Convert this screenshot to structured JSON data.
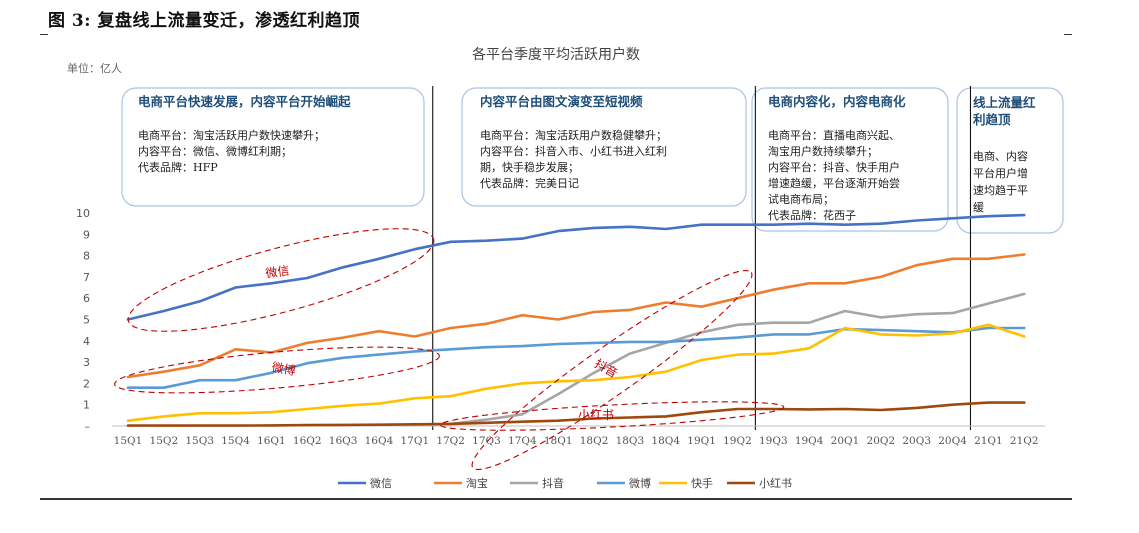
{
  "figure_title": "图 3:  复盘线上流量变迁，渗透红利趋顶",
  "chart_data": {
    "type": "line",
    "title": "各平台季度平均活跃用户数",
    "unit": "单位：亿人",
    "categories": [
      "15Q1",
      "15Q2",
      "15Q3",
      "15Q4",
      "16Q1",
      "16Q2",
      "16Q3",
      "16Q4",
      "17Q1",
      "17Q2",
      "17Q3",
      "17Q4",
      "18Q1",
      "18Q2",
      "18Q3",
      "18Q4",
      "19Q1",
      "19Q2",
      "19Q3",
      "19Q4",
      "20Q1",
      "20Q2",
      "20Q3",
      "20Q4",
      "21Q1",
      "21Q2"
    ],
    "ylim": [
      0,
      10
    ],
    "yticks": [
      "–",
      "1",
      "2",
      "3",
      "4",
      "5",
      "6",
      "7",
      "8",
      "9",
      "10"
    ],
    "grid": false,
    "legend_position": "bottom",
    "series": [
      {
        "name": "微信",
        "color": "#4472C4",
        "values": [
          5.0,
          5.4,
          5.85,
          6.5,
          6.7,
          6.95,
          7.45,
          7.85,
          8.3,
          8.65,
          8.7,
          8.8,
          9.15,
          9.3,
          9.35,
          9.25,
          9.45,
          9.45,
          9.45,
          9.5,
          9.45,
          9.5,
          9.65,
          9.75,
          9.85,
          9.9
        ]
      },
      {
        "name": "淘宝",
        "color": "#ED7D31",
        "values": [
          2.3,
          2.55,
          2.85,
          3.6,
          3.45,
          3.9,
          4.15,
          4.45,
          4.2,
          4.6,
          4.8,
          5.2,
          5.0,
          5.35,
          5.45,
          5.8,
          5.6,
          6.0,
          6.4,
          6.7,
          6.7,
          7.0,
          7.55,
          7.85,
          7.85,
          8.05
        ]
      },
      {
        "name": "抖音",
        "color": "#A5A5A5",
        "values": [
          null,
          null,
          null,
          null,
          null,
          null,
          null,
          null,
          null,
          0.1,
          0.3,
          0.55,
          1.5,
          2.5,
          3.4,
          3.9,
          4.4,
          4.75,
          4.85,
          4.85,
          5.4,
          5.1,
          5.25,
          5.3,
          5.75,
          6.2
        ]
      },
      {
        "name": "微博",
        "color": "#5B9BD5",
        "values": [
          1.8,
          1.8,
          2.15,
          2.15,
          2.5,
          2.95,
          3.2,
          3.35,
          3.5,
          3.6,
          3.7,
          3.75,
          3.85,
          3.9,
          3.95,
          3.95,
          4.05,
          4.15,
          4.3,
          4.3,
          4.55,
          4.5,
          4.45,
          4.4,
          4.6,
          4.6
        ]
      },
      {
        "name": "快手",
        "color": "#FFC000",
        "values": [
          0.25,
          0.45,
          0.6,
          0.6,
          0.65,
          0.8,
          0.95,
          1.05,
          1.3,
          1.4,
          1.75,
          2.0,
          2.1,
          2.15,
          2.3,
          2.55,
          3.1,
          3.35,
          3.4,
          3.65,
          4.6,
          4.3,
          4.25,
          4.35,
          4.75,
          4.2
        ]
      },
      {
        "name": "小红书",
        "color": "#9E480E",
        "values": [
          0.02,
          0.02,
          0.02,
          0.02,
          0.03,
          0.04,
          0.05,
          0.06,
          0.08,
          0.1,
          0.15,
          0.2,
          0.25,
          0.35,
          0.4,
          0.45,
          0.65,
          0.8,
          0.8,
          0.78,
          0.8,
          0.75,
          0.85,
          1.0,
          1.1,
          1.1
        ]
      }
    ],
    "phase_dividers_after": [
      "17Q1",
      "19Q2",
      "20Q4"
    ],
    "phases": [
      {
        "heading": "电商平台快速发展，内容平台开始崛起",
        "lines": [
          "电商平台：淘宝活跃用户数快速攀升；",
          "内容平台：微信、微博红利期；",
          "代表品牌：HFP"
        ]
      },
      {
        "heading": "内容平台由图文演变至短视频",
        "lines": [
          "电商平台：淘宝活跃用户数稳健攀升；",
          "内容平台：抖音入市、小红书进入红利",
          "期，快手稳步发展；",
          "代表品牌：完美日记"
        ]
      },
      {
        "heading": "电商内容化，内容电商化",
        "lines": [
          "电商平台：直播电商兴起、",
          "淘宝用户数持续攀升；",
          "内容平台：抖音、快手用户",
          "增速趋缓，平台逐渐开始尝",
          "试电商布局；",
          "代表品牌：花西子"
        ]
      },
      {
        "heading": "线上流量红利趋顶",
        "heading_lines": [
          "线上流量红",
          "利趋顶"
        ],
        "lines": [
          "电商、内容",
          "平台用户增",
          "速均趋于平",
          "缓"
        ]
      }
    ],
    "annotations": [
      "微信",
      "微博",
      "抖音",
      "小红书"
    ]
  }
}
